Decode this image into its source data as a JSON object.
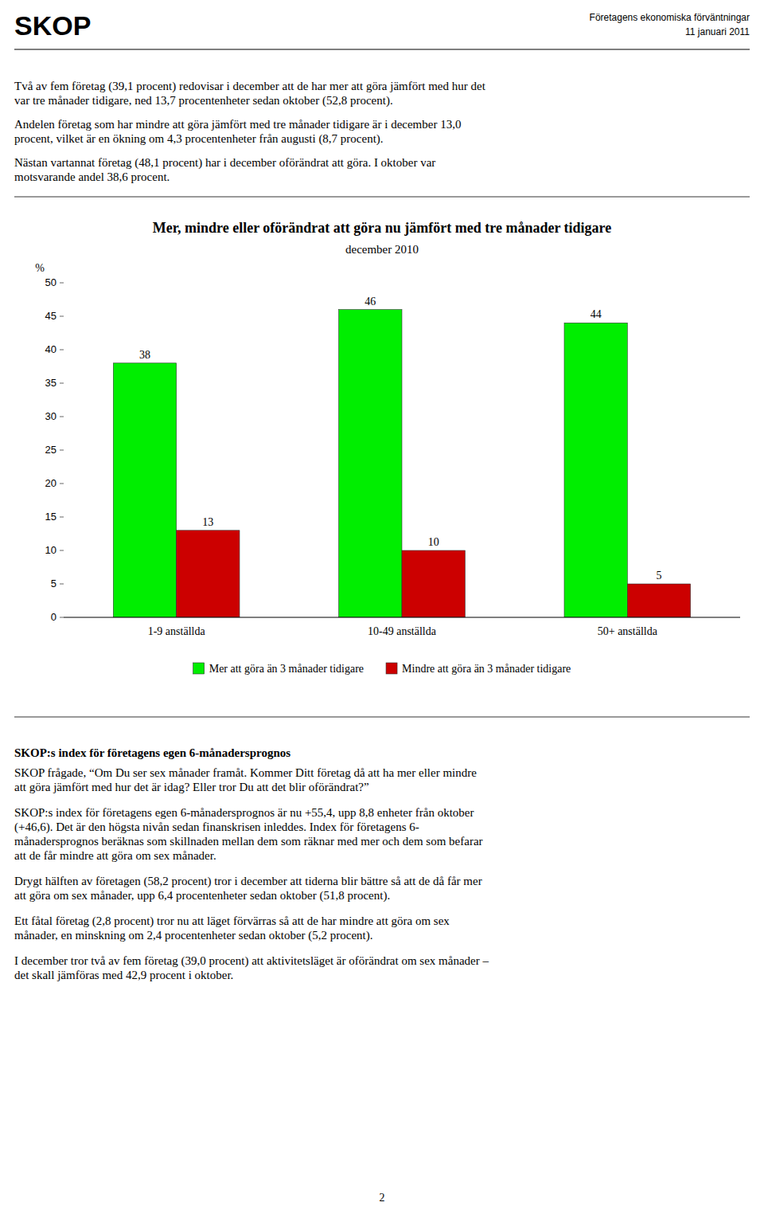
{
  "header": {
    "title": "SKOP",
    "right": [
      "Företagens ekonomiska förväntningar",
      "11 januari 2011"
    ]
  },
  "intro": [
    [
      "Två av fem företag (39,1 procent) redovisar i december att de har mer att göra jämfört med hur det",
      "var tre månader tidigare, ned 13,7 procentenheter sedan oktober (52,8 procent)."
    ],
    [
      "Andelen företag som har mindre att göra jämfört med tre månader tidigare är i december 13,0",
      "procent, vilket är en ökning om 4,3 procentenheter från augusti (8,7 procent)."
    ],
    [
      "Nästan vartannat företag (48,1 procent) har i december oförändrat att göra. I oktober var",
      "motsvarande andel 38,6 procent."
    ]
  ],
  "chart_data": {
    "type": "bar",
    "title": "Mer, mindre eller oförändrat att göra nu jämfört med tre månader tidigare",
    "subtitle": "december 2010",
    "ylabel": "%",
    "categories": [
      "1-9 anställda",
      "10-49 anställda",
      "50+ anställda"
    ],
    "series": [
      {
        "name": "Mer att göra än 3 månader tidigare",
        "color": "#00EE00",
        "values": [
          38,
          46,
          44
        ]
      },
      {
        "name": "Mindre att göra än 3 månader tidigare",
        "color": "#CC0000",
        "values": [
          13,
          10,
          5
        ]
      }
    ],
    "ylim": [
      0,
      50
    ],
    "yticks": [
      0,
      5,
      10,
      15,
      20,
      25,
      30,
      35,
      40,
      45,
      50
    ],
    "grid": false,
    "legend": "bottom",
    "data_labels": true
  },
  "section": {
    "title": "SKOP:s index för företagens egen 6-månadersprognos",
    "paragraphs": [
      [
        "SKOP frågade, “Om Du ser sex månader framåt. Kommer Ditt företag då att ha mer eller mindre",
        "att göra jämfört med hur det är idag? Eller tror Du att det blir oförändrat?”"
      ],
      [
        "SKOP:s index för företagens egen 6-månadersprognos är nu +55,4, upp 8,8 enheter från oktober",
        "(+46,6). Det är den högsta nivån sedan finanskrisen inleddes. Index för företagens 6-",
        "månadersprognos beräknas som skillnaden mellan dem som räknar med mer och dem som befarar",
        "att de får mindre att göra om sex månader."
      ],
      [
        "Drygt hälften av företagen (58,2 procent) tror i december att tiderna blir bättre så att de då får mer",
        "att göra om sex månader, upp 6,4 procentenheter sedan oktober (51,8 procent)."
      ],
      [
        "Ett fåtal företag (2,8 procent) tror nu att läget förvärras så att de har mindre att göra om sex",
        "månader, en minskning om 2,4 procentenheter sedan oktober (5,2 procent)."
      ],
      [
        "I december tror två av fem företag (39,0 procent) att aktivitetsläget är oförändrat om sex månader –",
        "det skall jämföras med 42,9 procent i oktober."
      ]
    ]
  },
  "footer": "2"
}
